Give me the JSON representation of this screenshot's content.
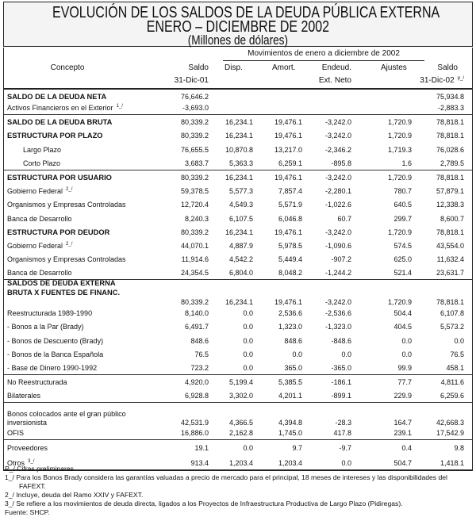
{
  "title": {
    "line1": "EVOLUCIÓN DE LOS SALDOS DE LA DEUDA PÚBLICA EXTERNA",
    "line2": "ENERO – DICIEMBRE DE 2002",
    "line3": "(Millones de dólares)"
  },
  "header": {
    "concepto": "Concepto",
    "saldo01_a": "Saldo",
    "saldo01_b": "31-Dic-01",
    "movimientos": "Movimientos de enero a diciembre de 2002",
    "disp": "Disp.",
    "amort": "Amort.",
    "endeud_a": "Endeud.",
    "endeud_b": "Ext. Neto",
    "ajustes": "Ajustes",
    "saldo02_a": "Saldo",
    "saldo02_b": "31-Dic-02",
    "saldo02_note": "p_/"
  },
  "groups": [
    [
      {
        "label": "SALDO DE LA  DEUDA NETA",
        "bold": true,
        "values": [
          "76,646.2",
          "",
          "",
          "",
          "",
          "75,934.8"
        ]
      },
      {
        "label": "Activos Financieros en el Exterior",
        "note": "1_/",
        "values": [
          "-3,693.0",
          "",
          "",
          "",
          "",
          "-2,883.3"
        ]
      }
    ],
    [
      {
        "label": "SALDO DE LA DEUDA BRUTA",
        "bold": true,
        "values": [
          "80,339.2",
          "16,234.1",
          "19,476.1",
          "-3,242.0",
          "1,720.9",
          "78,818.1"
        ]
      },
      {
        "label": "ESTRUCTURA POR PLAZO",
        "bold": true,
        "values": [
          "80,339.2",
          "16,234.1",
          "19,476.1",
          "-3,242.0",
          "1,720.9",
          "78,818.1"
        ]
      },
      {
        "label": "Largo Plazo",
        "indent": true,
        "values": [
          "76,655.5",
          "10,870.8",
          "13,217.0",
          "-2,346.2",
          "1,719.3",
          "76,028.6"
        ]
      },
      {
        "label": "Corto Plazo",
        "indent": true,
        "values": [
          "3,683.7",
          "5,363.3",
          "6,259.1",
          "-895.8",
          "1.6",
          "2,789.5"
        ]
      }
    ],
    [
      {
        "label": "ESTRUCTURA POR USUARIO",
        "bold": true,
        "values": [
          "80,339.2",
          "16,234.1",
          "19,476.1",
          "-3,242.0",
          "1,720.9",
          "78,818.1"
        ]
      },
      {
        "label": "Gobierno Federal",
        "note": "2_/",
        "values": [
          "59,378.5",
          "5,577.3",
          "7,857.4",
          "-2,280.1",
          "780.7",
          "57,879.1"
        ]
      },
      {
        "label": "Organismos y Empresas Controladas",
        "values": [
          "12,720.4",
          "4,549.3",
          "5,571.9",
          "-1,022.6",
          "640.5",
          "12,338.3"
        ]
      },
      {
        "label": "Banca de Desarrollo",
        "values": [
          "8,240.3",
          "6,107.5",
          "6,046.8",
          "60.7",
          "299.7",
          "8,600.7"
        ]
      },
      {
        "label": "ESTRUCTURA POR DEUDOR",
        "bold": true,
        "values": [
          "80,339.2",
          "16,234.1",
          "19,476.1",
          "-3,242.0",
          "1,720.9",
          "78,818.1"
        ]
      },
      {
        "label": "Gobierno Federal",
        "note": "2_/",
        "values": [
          "44,070.1",
          "4,887.9",
          "5,978.5",
          "-1,090.6",
          "574.5",
          "43,554.0"
        ]
      },
      {
        "label": "Organismos y Empresas Controladas",
        "values": [
          "11,914.6",
          "4,542.2",
          "5,449.4",
          "-907.2",
          "625.0",
          "11,632.4"
        ]
      },
      {
        "label": "Banca de Desarrollo",
        "values": [
          "24,354.5",
          "6,804.0",
          "8,048.2",
          "-1,244.2",
          "521.4",
          "23,631.7"
        ]
      }
    ],
    [
      {
        "label": "SALDOS DE DEUDA EXTERNA",
        "bold": true,
        "values": [
          "",
          "",
          "",
          "",
          "",
          ""
        ]
      },
      {
        "label": "BRUTA  X FUENTES DE FINANC.",
        "bold": true,
        "values": [
          "",
          "",
          "",
          "",
          "",
          ""
        ]
      },
      {
        "label": "",
        "values": [
          "80,339.2",
          "16,234.1",
          "19,476.1",
          "-3,242.0",
          "1,720.9",
          "78,818.1"
        ]
      },
      {
        "label": "Reestructurada 1989-1990",
        "values": [
          "8,140.0",
          "0.0",
          "2,536.6",
          "-2,536.6",
          "504.4",
          "6,107.8"
        ]
      },
      {
        "label": "- Bonos a la Par (Brady)",
        "values": [
          "6,491.7",
          "0.0",
          "1,323.0",
          "-1,323.0",
          "404.5",
          "5,573.2"
        ]
      },
      {
        "label": "- Bonos de Descuento (Brady)",
        "values": [
          "848.6",
          "0.0",
          "848.6",
          "-848.6",
          "0.0",
          "0.0"
        ]
      },
      {
        "label": "- Bonos de la Banca Española",
        "values": [
          "76.5",
          "0.0",
          "0.0",
          "0.0",
          "0.0",
          "76.5"
        ]
      },
      {
        "label": "- Base de Dinero 1990-1992",
        "values": [
          "723.2",
          "0.0",
          "365.0",
          "-365.0",
          "99.9",
          "458.1"
        ]
      }
    ],
    [
      {
        "label": "No Reestructurada",
        "values": [
          "4,920.0",
          "5,199.4",
          "5,385.5",
          "-186.1",
          "77.7",
          "4,811.6"
        ]
      },
      {
        "label": "Bilaterales",
        "values": [
          "6,928.8",
          "3,302.0",
          "4,201.1",
          "-899.1",
          "229.9",
          "6,259.6"
        ]
      }
    ],
    [
      {
        "label": "Bonos colocados ante el gran público",
        "values": [
          "",
          "",
          "",
          "",
          "",
          ""
        ]
      },
      {
        "label": " inversionista",
        "values": [
          "42,531.9",
          "4,366.5",
          "4,394.8",
          "-28.3",
          "164.7",
          "42,668.3"
        ]
      },
      {
        "label": "OFIS",
        "values": [
          "16,886.0",
          "2,162.8",
          "1,745.0",
          "417.8",
          "239.1",
          "17,542.9"
        ]
      }
    ],
    [
      {
        "label": "Proveedores",
        "values": [
          "19.1",
          "0.0",
          "9.7",
          "-9.7",
          "0.4",
          "9.8"
        ]
      },
      {
        "label": "Otros",
        "note": "3_/",
        "values": [
          "913.4",
          "1,203.4",
          "1,203.4",
          "0.0",
          "504.7",
          "1,418.1"
        ]
      }
    ]
  ],
  "notes": {
    "p": "P_/ Cifras preliminares.",
    "n1": "1_/ Para los Bonos Brady considera las garantías valuadas a precio de mercado para el principal, 18 meses de intereses y las disponibilidades del",
    "n1b": "FAFEXT.",
    "n2": "2_/  Incluye, deuda del Ramo XXIV y FAFEXT.",
    "n3": "3_/ Se refiere a los movimientos de deuda directa, ligados a los Proyectos de Infraestructura Productiva de Largo Plazo (Pidiregas).",
    "source": "Fuente: SHCP."
  }
}
